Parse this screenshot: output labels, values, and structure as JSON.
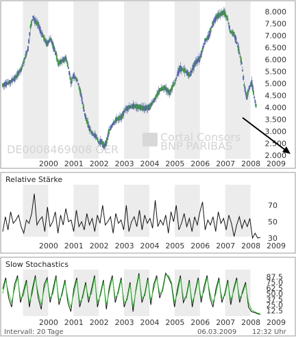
{
  "chart_data": [
    {
      "type": "candlestick",
      "watermark_id": "DE0008469008 GER",
      "watermark_brand": "Cortal Consors",
      "watermark_sub": "BNP PARIBAS",
      "x_labels": [
        "2000",
        "2001",
        "2002",
        "2003",
        "2004",
        "2005",
        "2006",
        "2007",
        "2008",
        "2009"
      ],
      "y_ticks": [
        "8.000",
        "7.500",
        "7.000",
        "6.500",
        "6.000",
        "5.500",
        "5.000",
        "4.500",
        "4.000",
        "3.500",
        "3.000",
        "2.500",
        "2.000"
      ],
      "ylim": [
        2000,
        8000
      ],
      "x_range": [
        1999.0,
        2009.2
      ],
      "annotations": [
        "arrow pointing down-right"
      ],
      "colors": {
        "up": "#3c9a3c",
        "down": "#5866a8",
        "shade": "#ececec"
      },
      "series": [
        {
          "x": [
            1999.0,
            1999.25,
            1999.5,
            1999.75,
            2000.0,
            2000.1,
            2000.2,
            2000.3,
            2000.4,
            2000.5,
            2000.6,
            2000.75,
            2000.9,
            2001.0,
            2001.1,
            2001.2,
            2001.35,
            2001.5,
            2001.6,
            2001.7,
            2001.8,
            2001.95,
            2002.1,
            2002.25,
            2002.4,
            2002.55,
            2002.7,
            2002.8,
            2002.9,
            2003.0,
            2003.1,
            2003.2,
            2003.35,
            2003.5,
            2003.7,
            2003.85,
            2004.0,
            2004.2,
            2004.4,
            2004.6,
            2004.8,
            2005.0,
            2005.2,
            2005.4,
            2005.6,
            2005.8,
            2006.0,
            2006.2,
            2006.4,
            2006.6,
            2006.8,
            2007.0,
            2007.15,
            2007.3,
            2007.45,
            2007.6,
            2007.75,
            2007.9,
            2008.0,
            2008.15,
            2008.3,
            2008.45,
            2008.55,
            2008.65,
            2008.75,
            2008.85,
            2008.95,
            2009.05,
            2009.15
          ],
          "values": [
            4900,
            5000,
            5200,
            5600,
            6400,
            7300,
            7700,
            7500,
            7400,
            7100,
            6900,
            6600,
            6800,
            6500,
            6200,
            5800,
            5900,
            6000,
            5600,
            5000,
            5300,
            5100,
            4500,
            3700,
            3200,
            2900,
            2800,
            2550,
            2600,
            2400,
            2550,
            3000,
            3300,
            3500,
            3600,
            3900,
            4000,
            4050,
            4000,
            3950,
            4000,
            4300,
            4700,
            4800,
            4600,
            5000,
            5600,
            5500,
            5300,
            5800,
            6000,
            6700,
            6900,
            7400,
            7700,
            7800,
            7900,
            7600,
            7100,
            7000,
            6500,
            5800,
            4900,
            4400,
            4800,
            5000,
            4400,
            3900,
            3800
          ]
        }
      ]
    },
    {
      "title": "Relative Stärke",
      "type": "line",
      "y_ticks": [
        "70",
        "50",
        "30"
      ],
      "ylim": [
        30,
        90
      ],
      "x_labels": [
        "2000",
        "2001",
        "2002",
        "2003",
        "2004",
        "2005",
        "2006",
        "2007",
        "2008",
        "2009"
      ],
      "series": [
        {
          "values": [
            38,
            56,
            40,
            62,
            48,
            52,
            58,
            44,
            36,
            52,
            48,
            60,
            84,
            46,
            52,
            56,
            38,
            68,
            44,
            50,
            62,
            36,
            58,
            46,
            66,
            50,
            52,
            38,
            64,
            44,
            50,
            40,
            60,
            46,
            54,
            38,
            58,
            48,
            70,
            46,
            50,
            56,
            36,
            60,
            48,
            52,
            40,
            70,
            38,
            50,
            56,
            44,
            64,
            40,
            58,
            48,
            54,
            42,
            76,
            44,
            52,
            46,
            58,
            36,
            62,
            50,
            70,
            40,
            48,
            60,
            44,
            54,
            38,
            56,
            46,
            62,
            74,
            40,
            52,
            46,
            56,
            38,
            62,
            48,
            54,
            40,
            58,
            48,
            32,
            46,
            56,
            42,
            52,
            44,
            54,
            30,
            36,
            30,
            31
          ]
        }
      ]
    },
    {
      "title": "Slow Stochastics",
      "type": "line",
      "y_ticks": [
        "87.5",
        "75.0",
        "62.5",
        "50.0",
        "37.5",
        "25.0",
        "12.5"
      ],
      "ylim": [
        0,
        100
      ],
      "x_labels": [
        "2000",
        "2001",
        "2002",
        "2003",
        "2004",
        "2005",
        "2006",
        "2007",
        "2008",
        "2009"
      ],
      "footer_left": "Intervall: 20 Tage",
      "footer_date": "06.03.2009",
      "footer_time": "12:32 Uhr",
      "series": [
        {
          "name": "",
          "color": "#111111",
          "values": [
            60,
            85,
            40,
            20,
            70,
            90,
            30,
            55,
            80,
            20,
            60,
            90,
            40,
            15,
            70,
            85,
            30,
            60,
            90,
            25,
            50,
            80,
            30,
            10,
            60,
            85,
            20,
            45,
            75,
            30,
            60,
            90,
            20,
            50,
            80,
            15,
            65,
            90,
            30,
            55,
            85,
            20,
            40,
            75,
            10,
            60,
            95,
            30,
            50,
            85,
            25,
            70,
            90,
            40,
            60,
            95,
            85,
            70,
            20,
            60,
            90,
            30,
            45,
            80,
            20,
            55,
            85,
            30,
            65,
            90,
            40,
            20,
            60,
            85,
            30,
            50,
            80,
            25,
            60,
            85,
            30,
            55,
            75,
            20,
            10,
            8,
            5,
            4
          ]
        },
        {
          "name": "",
          "color": "#2ecc2e",
          "values": [
            50,
            80,
            50,
            30,
            60,
            85,
            40,
            45,
            75,
            30,
            50,
            85,
            50,
            25,
            60,
            80,
            40,
            50,
            85,
            35,
            45,
            75,
            40,
            20,
            50,
            80,
            30,
            40,
            70,
            40,
            50,
            85,
            30,
            45,
            75,
            25,
            55,
            85,
            40,
            50,
            80,
            30,
            35,
            70,
            20,
            55,
            90,
            40,
            45,
            80,
            35,
            60,
            85,
            50,
            55,
            90,
            90,
            75,
            30,
            50,
            85,
            40,
            40,
            75,
            30,
            50,
            80,
            40,
            55,
            85,
            50,
            30,
            50,
            80,
            40,
            45,
            75,
            35,
            55,
            80,
            40,
            50,
            70,
            30,
            15,
            10,
            7,
            5
          ]
        }
      ]
    }
  ]
}
